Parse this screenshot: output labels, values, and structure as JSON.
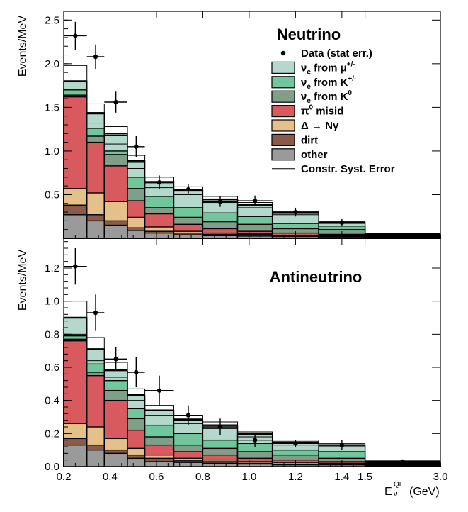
{
  "colors": {
    "nue_mu": "#b4d9cc",
    "nue_Kpm": "#71c79b",
    "nue_K0": "#7f9f88",
    "pi0": "#d85a5e",
    "delta": "#e5c089",
    "dirt": "#8b5a4a",
    "other": "#9a9a9a"
  },
  "chart_data": {
    "type": "bar",
    "stacked": true,
    "xlabel": {
      "base": "E",
      "sub": "ν",
      "sup": "QE",
      "unit": "(GeV)"
    },
    "ylabel": "Events/MeV",
    "bin_edges": [
      0.2,
      0.3,
      0.375,
      0.475,
      0.55,
      0.675,
      0.8,
      0.95,
      1.1,
      1.3,
      1.5,
      3.0
    ],
    "x_display_breaks": [
      [
        0.2,
        0.0
      ],
      [
        1.5,
        0.8
      ],
      [
        3.0,
        1.0
      ]
    ],
    "x_ticks": [
      {
        "v": 0.2,
        "label": "0.2"
      },
      {
        "v": 0.4,
        "label": "0.4"
      },
      {
        "v": 0.6,
        "label": "0.6"
      },
      {
        "v": 0.8,
        "label": "0.8"
      },
      {
        "v": 1.0,
        "label": "1.0"
      },
      {
        "v": 1.2,
        "label": "1.2"
      },
      {
        "v": 1.4,
        "label": "1.4"
      },
      {
        "v": 1.5,
        "label": "1.5"
      },
      {
        "v": 3.0,
        "label": "3.0"
      }
    ],
    "legend": {
      "placement": "top-right",
      "entries": [
        {
          "kind": "marker",
          "text": "Data (stat err.)"
        },
        {
          "kind": "fill",
          "color_key": "nue_mu",
          "base": "ν",
          "sub": "e",
          "rest": " from μ",
          "sup": "+/-"
        },
        {
          "kind": "fill",
          "color_key": "nue_Kpm",
          "base": "ν",
          "sub": "e",
          "rest": " from K",
          "sup": "+/-"
        },
        {
          "kind": "fill",
          "color_key": "nue_K0",
          "base": "ν",
          "sub": "e",
          "rest": " from K",
          "sup": "0"
        },
        {
          "kind": "fill",
          "color_key": "pi0",
          "base": "π",
          "sub": "",
          "rest": " misid",
          "sup": "0"
        },
        {
          "kind": "fill",
          "color_key": "delta",
          "base": "Δ → Nγ",
          "sub": "",
          "rest": "",
          "sup": ""
        },
        {
          "kind": "fill",
          "color_key": "dirt",
          "base": "dirt",
          "sub": "",
          "rest": "",
          "sup": ""
        },
        {
          "kind": "fill",
          "color_key": "other",
          "base": "other",
          "sub": "",
          "rest": "",
          "sup": ""
        },
        {
          "kind": "line",
          "text": "Constr. Syst. Error"
        }
      ]
    },
    "panels": [
      {
        "title": "Neutrino",
        "ylim": [
          0,
          2.6
        ],
        "y_ticks": [
          {
            "v": 0.5,
            "label": "0.5"
          },
          {
            "v": 1.0,
            "label": "1.0"
          },
          {
            "v": 1.5,
            "label": "1.5"
          },
          {
            "v": 2.0,
            "label": "2.0"
          },
          {
            "v": 2.5,
            "label": "2.5"
          }
        ],
        "stack_tops": {
          "other": [
            0.27,
            0.2,
            0.15,
            0.09,
            0.06,
            0.04,
            0.03,
            0.025,
            0.02,
            0.015,
            0.01
          ],
          "dirt": [
            0.38,
            0.27,
            0.2,
            0.12,
            0.08,
            0.06,
            0.045,
            0.04,
            0.03,
            0.025,
            0.015
          ],
          "delta": [
            0.57,
            0.52,
            0.42,
            0.24,
            0.13,
            0.08,
            0.06,
            0.05,
            0.035,
            0.03,
            0.02
          ],
          "pi0": [
            1.62,
            1.1,
            0.83,
            0.43,
            0.28,
            0.16,
            0.11,
            0.08,
            0.06,
            0.045,
            0.03
          ],
          "nue_K0": [
            1.64,
            1.17,
            0.96,
            0.57,
            0.35,
            0.24,
            0.19,
            0.16,
            0.11,
            0.1,
            0.035
          ],
          "nue_Kpm": [
            1.7,
            1.26,
            1.0,
            0.7,
            0.48,
            0.35,
            0.29,
            0.25,
            0.17,
            0.14,
            0.04
          ],
          "nue_mu": [
            1.8,
            1.44,
            1.2,
            0.89,
            0.65,
            0.55,
            0.45,
            0.38,
            0.29,
            0.18,
            0.05
          ]
        },
        "data_points": {
          "y": [
            2.32,
            2.08,
            1.56,
            1.05,
            0.64,
            0.56,
            0.42,
            0.43,
            0.3,
            0.18,
            0.03
          ],
          "yerr": [
            0.16,
            0.14,
            0.12,
            0.12,
            0.08,
            0.06,
            0.06,
            0.06,
            0.05,
            0.04,
            0.01
          ]
        },
        "syst_band": {
          "lo": [
            1.62,
            1.32,
            1.08,
            0.8,
            0.58,
            0.5,
            0.41,
            0.35,
            0.27,
            0.17,
            0.045
          ],
          "hi": [
            1.98,
            1.54,
            1.28,
            0.95,
            0.7,
            0.59,
            0.48,
            0.41,
            0.31,
            0.19,
            0.055
          ]
        }
      },
      {
        "title": "Antineutrino",
        "ylim": [
          0,
          1.38
        ],
        "y_ticks": [
          {
            "v": 0.0,
            "label": "0.0"
          },
          {
            "v": 0.2,
            "label": "0.2"
          },
          {
            "v": 0.4,
            "label": "0.4"
          },
          {
            "v": 0.6,
            "label": "0.6"
          },
          {
            "v": 0.8,
            "label": "0.8"
          },
          {
            "v": 1.0,
            "label": "1.0"
          },
          {
            "v": 1.2,
            "label": "1.2"
          }
        ],
        "stack_tops": {
          "other": [
            0.13,
            0.1,
            0.08,
            0.05,
            0.03,
            0.025,
            0.02,
            0.015,
            0.01,
            0.01,
            0.005
          ],
          "dirt": [
            0.17,
            0.13,
            0.1,
            0.07,
            0.05,
            0.035,
            0.03,
            0.02,
            0.015,
            0.012,
            0.008
          ],
          "delta": [
            0.26,
            0.24,
            0.17,
            0.11,
            0.07,
            0.05,
            0.04,
            0.03,
            0.025,
            0.02,
            0.01
          ],
          "pi0": [
            0.76,
            0.55,
            0.4,
            0.22,
            0.13,
            0.09,
            0.07,
            0.05,
            0.04,
            0.03,
            0.015
          ],
          "nue_K0": [
            0.77,
            0.57,
            0.46,
            0.29,
            0.18,
            0.13,
            0.11,
            0.09,
            0.07,
            0.05,
            0.02
          ],
          "nue_Kpm": [
            0.79,
            0.62,
            0.52,
            0.35,
            0.25,
            0.2,
            0.16,
            0.14,
            0.1,
            0.09,
            0.025
          ],
          "nue_mu": [
            0.9,
            0.71,
            0.58,
            0.43,
            0.34,
            0.28,
            0.25,
            0.2,
            0.15,
            0.13,
            0.03
          ]
        },
        "data_points": {
          "y": [
            1.21,
            0.93,
            0.65,
            0.57,
            0.46,
            0.31,
            0.24,
            0.16,
            0.14,
            0.13,
            0.03
          ],
          "yerr": [
            0.11,
            0.11,
            0.07,
            0.09,
            0.09,
            0.06,
            0.05,
            0.04,
            0.02,
            0.03,
            0.01
          ]
        },
        "syst_band": {
          "lo": [
            0.8,
            0.64,
            0.54,
            0.4,
            0.31,
            0.26,
            0.23,
            0.18,
            0.13,
            0.12,
            0.025
          ],
          "hi": [
            1.0,
            0.78,
            0.63,
            0.47,
            0.37,
            0.31,
            0.27,
            0.21,
            0.16,
            0.14,
            0.035
          ]
        }
      }
    ]
  }
}
